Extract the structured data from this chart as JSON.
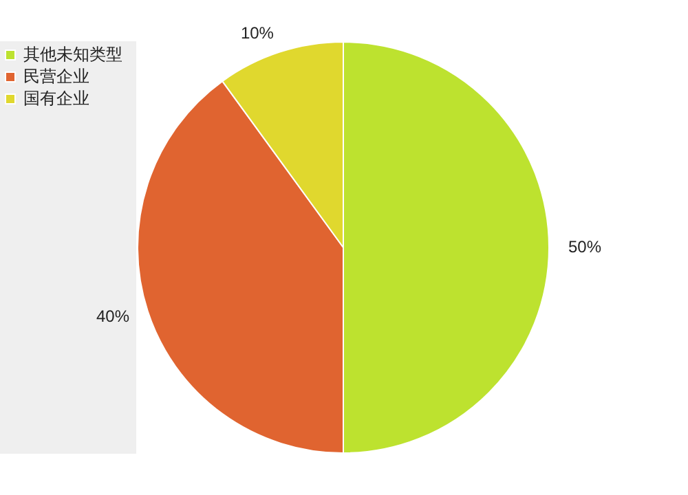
{
  "chart_data": {
    "type": "pie",
    "categories": [
      "其他未知类型",
      "民营企业",
      "国有企业"
    ],
    "values": [
      50,
      40,
      10
    ],
    "colors": [
      "#bde22f",
      "#e06430",
      "#e0d82e"
    ],
    "value_labels": [
      "50%",
      "40%",
      "10%"
    ],
    "legend": "top left"
  }
}
